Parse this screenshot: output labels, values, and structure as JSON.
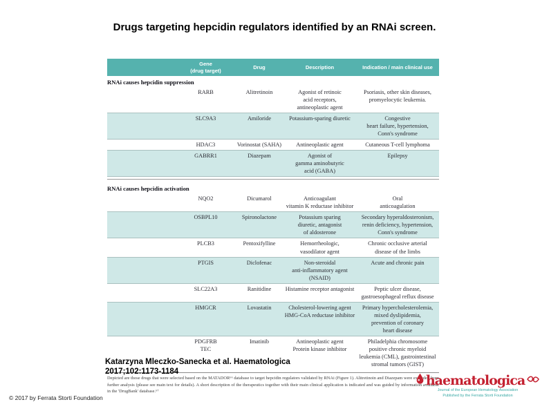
{
  "slide": {
    "title": "Drugs targeting hepcidin regulators identified by an RNAi screen.",
    "citation_line1": "Katarzyna Mleczko-Sanecka et al. Haematologica",
    "citation_line2": "2017;102:1173-1184",
    "copyright": "© 2017 by Ferrata Storti Foundation"
  },
  "logo": {
    "wordmark": "haematologica",
    "tagline1": "Journal of the European Hematology Association",
    "tagline2": "Published by the Ferrata Storti Foundation",
    "brand_red": "#c42131",
    "brand_teal": "#3aa9a5"
  },
  "table": {
    "header_bg": "#55b2ae",
    "band_bg": "#cfe8e7",
    "columns": [
      "Gene\n(drug target)",
      "Drug",
      "Description",
      "Indication / main clinical use"
    ],
    "sections": [
      {
        "label": "RNAi causes hepcidin suppression",
        "rows": [
          {
            "gene": "RARB",
            "drug": "Alitretinoin",
            "description": "Agonist of retinoic\nacid receptors,\nantineoplastic agent",
            "indication": "Psoriasis, other skin diseases,\npromyelocytic leukemia.",
            "banded": false
          },
          {
            "gene": "SLC9A3",
            "drug": "Amiloride",
            "description": "Potassium-sparing diuretic",
            "indication": "Congestive\nheart failure, hypertension,\nConn's syndrome",
            "banded": true
          },
          {
            "gene": "HDAC3",
            "drug": "Vorinostat (SAHA)",
            "description": "Antineoplastic agent",
            "indication": "Cutaneous T-cell lymphoma",
            "banded": false
          },
          {
            "gene": "GABRR1",
            "drug": "Diazepam",
            "description": "Agonist of\ngamma aminobutyric\nacid (GABA)",
            "indication": "Epilepsy",
            "banded": true
          }
        ]
      },
      {
        "label": "RNAi causes hepcidin activation",
        "rows": [
          {
            "gene": "NQO2",
            "drug": "Dicumarol",
            "description": "Anticoagulant\nvitamin K reductase inhibitor",
            "indication": "Oral\nanticoagulation",
            "banded": false
          },
          {
            "gene": "OSBPL10",
            "drug": "Spironolactone",
            "description": "Potassium sparing\ndiuretic, antagonist\nof aldosterone",
            "indication": "Secondary hyperaldosteronism,\nrenin deficiency, hypertension,\nConn's syndrome",
            "banded": true
          },
          {
            "gene": "PLCB3",
            "drug": "Pentoxifylline",
            "description": "Hemorrheologic,\nvasodilator agent",
            "indication": "Chronic occlusive arterial\ndisease of the limbs",
            "banded": false
          },
          {
            "gene": "PTGIS",
            "drug": "Diclofenac",
            "description": "Non-steroidal\nanti-inflammatory agent (NSAID)",
            "indication": "Acute and chronic pain",
            "banded": true
          },
          {
            "gene": "SLC22A3",
            "drug": "Ranitidine",
            "description": "Histamine receptor antagonist",
            "indication": "Peptic ulcer disease,\ngastroesophageal reflux disease",
            "banded": false
          },
          {
            "gene": "HMGCR",
            "drug": "Lovastatin",
            "description": "Cholesterol-lowering agent\nHMG-CoA reductase inhibitor",
            "indication": "Primary hypercholesterolemia,\nmixed dyslipidemia,\nprevention of coronary\nheart disease",
            "banded": true
          },
          {
            "gene": "PDGFRB\nTEC",
            "drug": "Imatinib",
            "description": "Antineoplastic agent\nProtein kinase inhibitor",
            "indication": "Philadelphia chromosome\npositive chronic myeloid\nleukemia (CML),  gastrointestinal\nstromal tumors (GIST)",
            "banded": false
          }
        ]
      }
    ],
    "footnote": "Depicted are those drugs that were selected based on the MATADOR⁶⁶ database to target hepcidin regulators validated by RNAi (Figure 1). Alitretinoin and Diazepam were excluded from further analysis (please see main text for details). A short description of the therapeutics together with their main clinical application is indicated and was guided by information available in the 'DrugBank' database.⁶⁷"
  }
}
